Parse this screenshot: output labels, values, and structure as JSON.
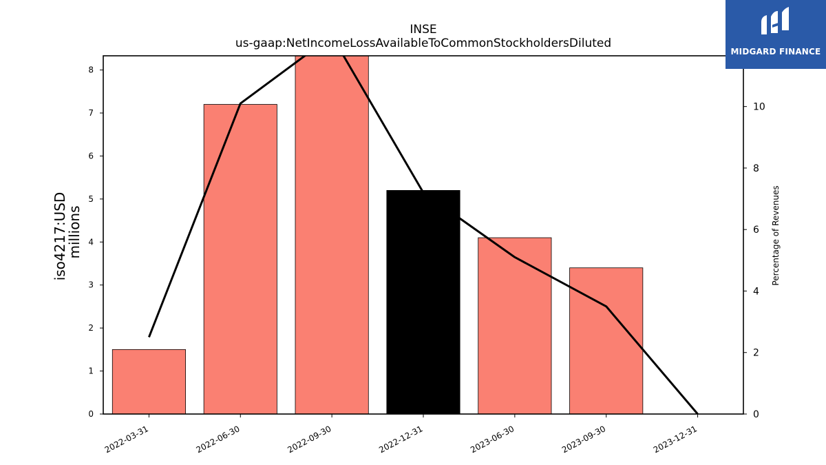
{
  "chart_data": {
    "type": "bar",
    "title": "INSE",
    "subtitle": "us-gaap:NetIncomeLossAvailableToCommonStockholdersDiluted",
    "ylabel_line1": "iso4217:USD",
    "ylabel_line2": "millions",
    "y2label": "Percentage of Revenues",
    "categories": [
      "2022-03-31",
      "2022-06-30",
      "2022-09-30",
      "2022-12-31",
      "2023-06-30",
      "2023-09-30",
      "2023-12-31"
    ],
    "series": [
      {
        "values": [
          1.5,
          7.2,
          8.5,
          5.2,
          4.1,
          3.4,
          0
        ],
        "bar_colors": [
          "#fa8072",
          "#fa8072",
          "#fa8072",
          "#000000",
          "#fa8072",
          "#fa8072",
          "#fa8072"
        ]
      },
      {
        "axis": "right",
        "type": "line",
        "values": [
          2.5,
          10.1,
          12.3,
          7.2,
          5.1,
          3.5,
          0
        ],
        "color": "#000000"
      }
    ],
    "ylim": [
      0,
      8.33
    ],
    "yticks": [
      0,
      1,
      2,
      3,
      4,
      5,
      6,
      7,
      8
    ],
    "y2lim": [
      0,
      11.65
    ],
    "y2ticks": [
      0,
      2,
      4,
      6,
      8,
      10
    ],
    "grid": false
  },
  "logo": {
    "text": "MIDGARD FINANCE",
    "bg_color": "#2a5aa8"
  }
}
